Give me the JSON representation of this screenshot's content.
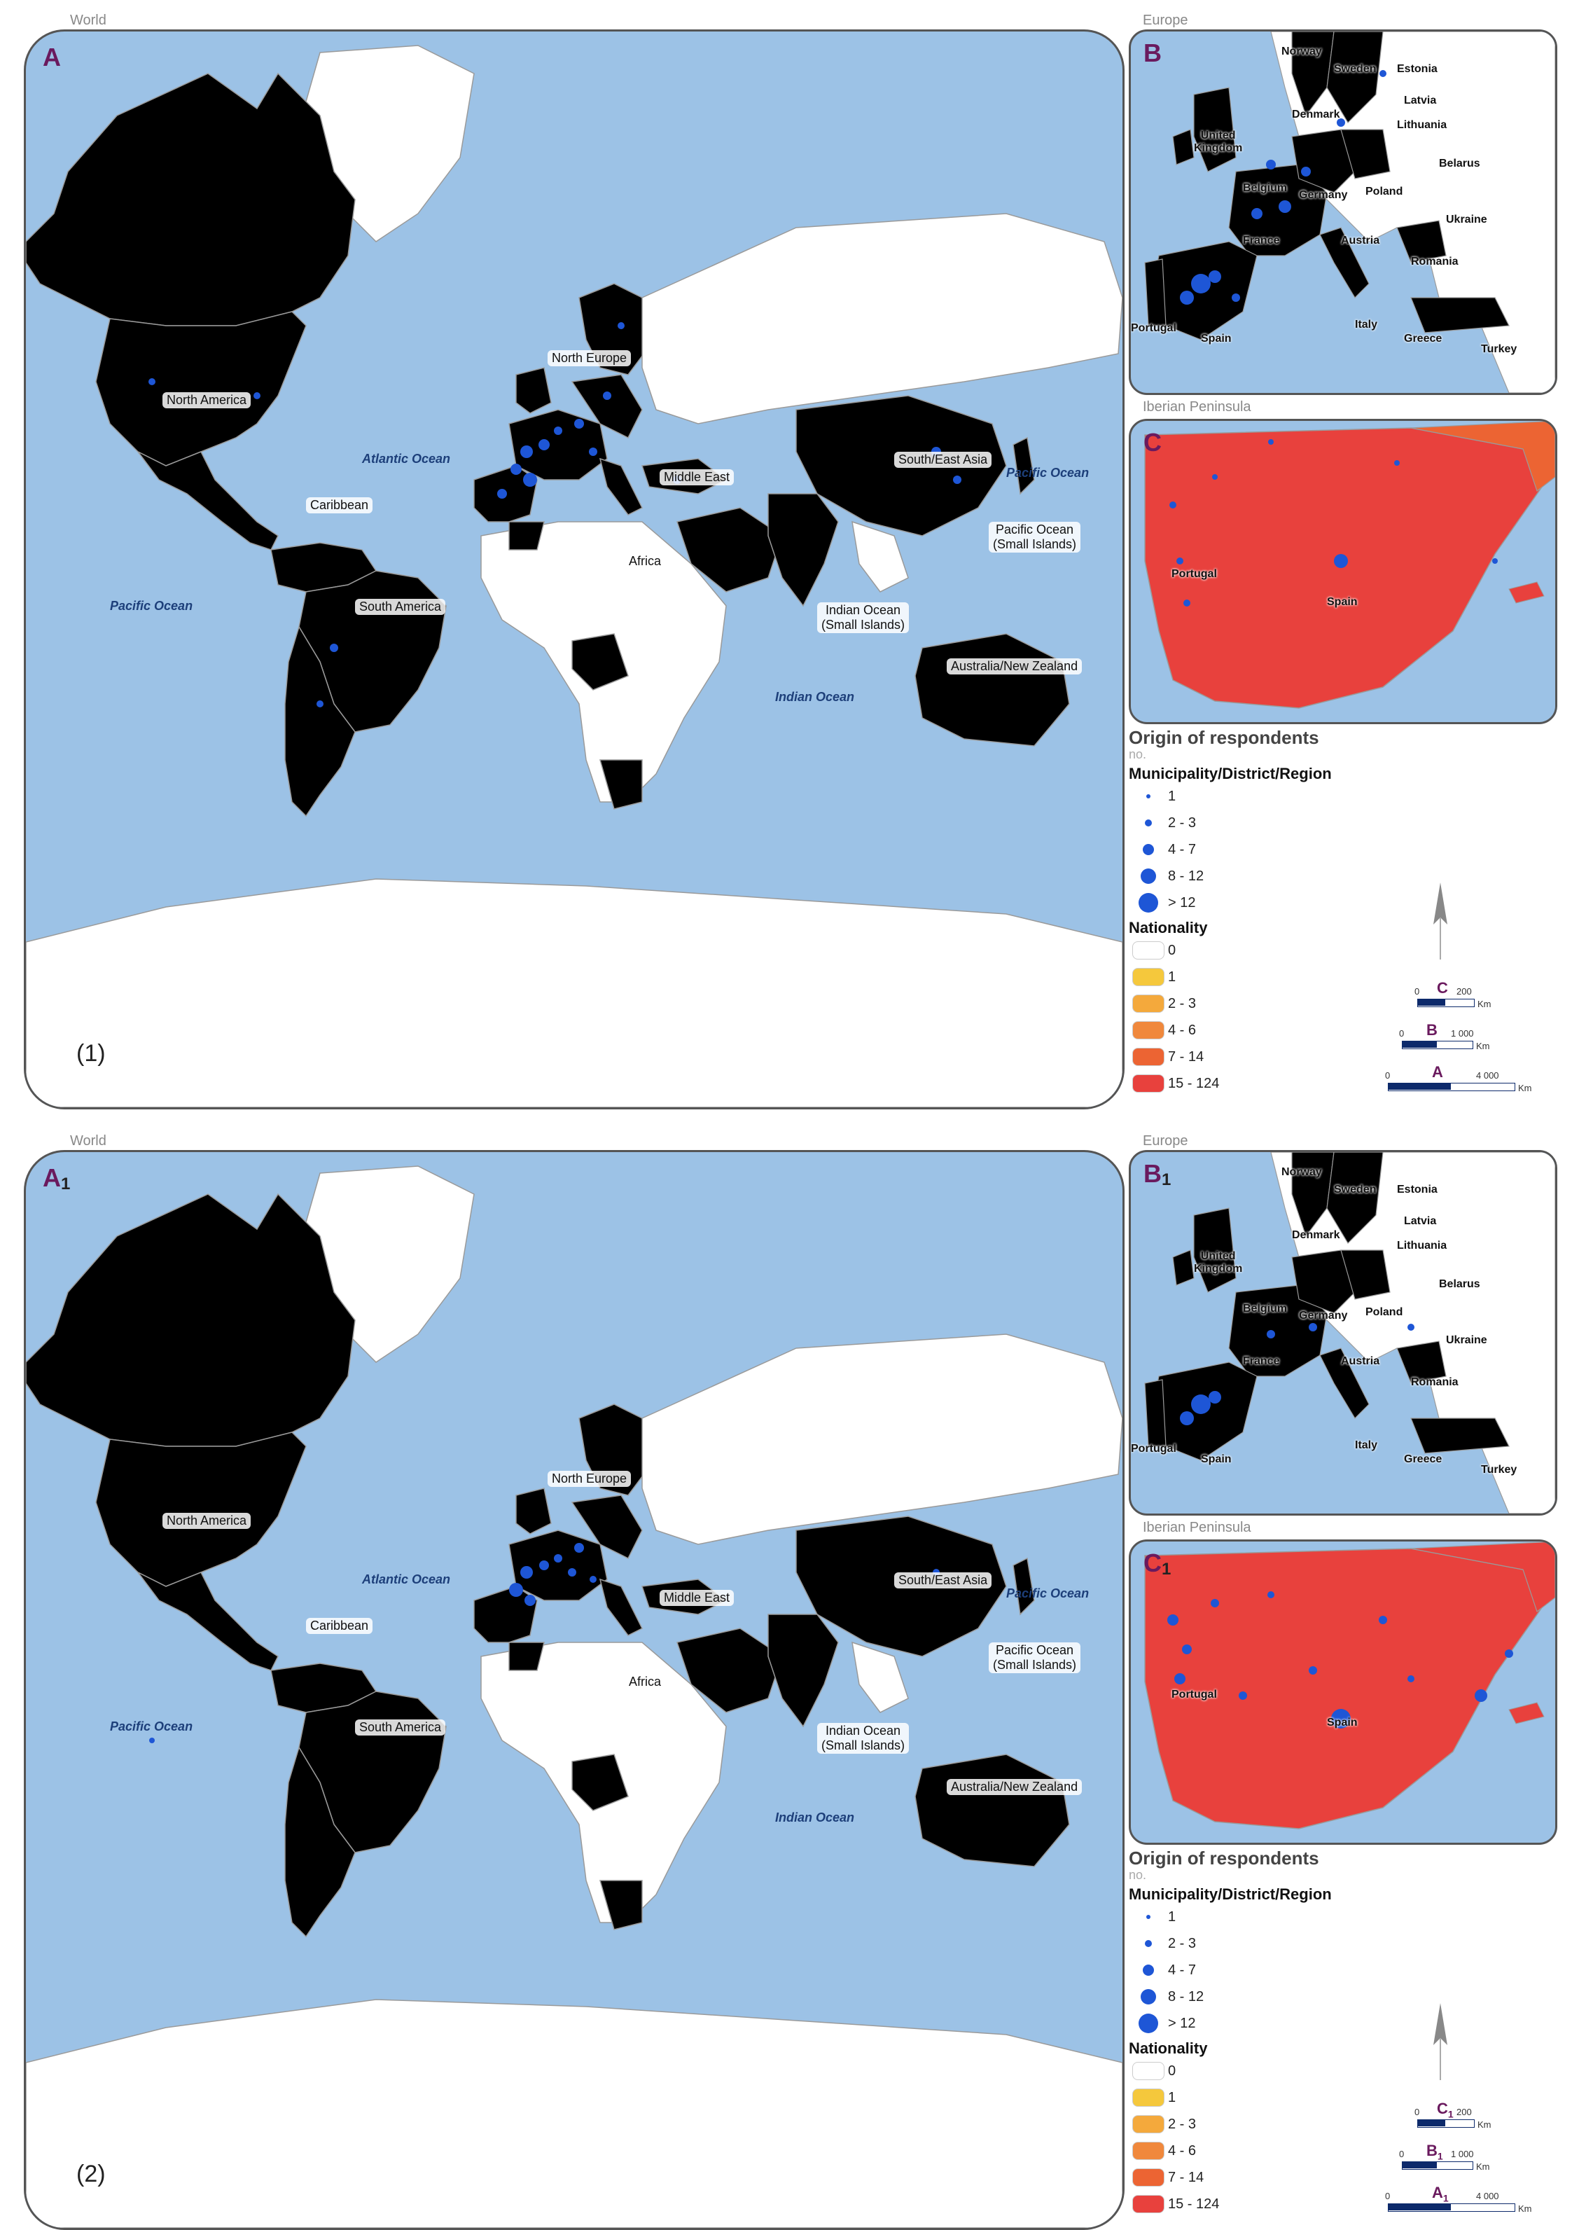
{
  "colors": {
    "ocean": "#9cc2e6",
    "land_none": "#ffffff",
    "c1": "#f5c83c",
    "c23": "#f4a93c",
    "c46": "#f0883c",
    "c714": "#ec6433",
    "c15": "#e8413d",
    "dot": "#1e56d6",
    "accent": "#6a1a5e"
  },
  "panels": [
    {
      "panel_number": "(1)",
      "captions": {
        "world": "World",
        "europe": "Europe",
        "iberia": "Iberian Peninsula"
      },
      "letters": {
        "a": "A",
        "a_sub": "",
        "b": "B",
        "b_sub": "",
        "c": "C",
        "c_sub": ""
      },
      "region_labels": {
        "north_america": "North America",
        "caribbean": "Caribbean",
        "south_america": "South America",
        "north_europe": "North Europe",
        "middle_east": "Middle East",
        "africa": "Africa",
        "se_asia": "South/East Asia",
        "indian_islands": "Indian Ocean\n(Small Islands)",
        "pacific_islands": "Pacific Ocean\n(Small Islands)",
        "australia": "Australia/New Zealand"
      },
      "oceans": {
        "atlantic": "Atlantic Ocean",
        "pacific_w": "Pacific Ocean",
        "pacific_e": "Pacific Ocean",
        "indian": "Indian Ocean"
      },
      "europe_labels": {
        "norway": "Norway",
        "sweden": "Sweden",
        "estonia": "Estonia",
        "latvia": "Latvia",
        "lithuania": "Lithuania",
        "denmark": "Denmark",
        "uk": "United\nKingdom",
        "belarus": "Belarus",
        "belgium": "Belgium",
        "germany": "Germany",
        "poland": "Poland",
        "ukraine": "Ukraine",
        "france": "France",
        "austria": "Austria",
        "romania": "Romania",
        "portugal": "Portugal",
        "spain": "Spain",
        "italy": "Italy",
        "greece": "Greece",
        "turkey": "Turkey"
      },
      "iberia_labels": {
        "portugal": "Portugal",
        "spain": "Spain"
      },
      "fills": {
        "canada": "c46",
        "usa": "c23",
        "mexico": "none",
        "brazil": "c714",
        "argentina": "c1",
        "colombia": "c1",
        "venezuela": "c1",
        "angola": "c714",
        "china": "c714",
        "india": "c46",
        "australia": "c1",
        "spain": "c15",
        "portugal": "c714",
        "france": "c15",
        "germany": "c714",
        "uk": "c714",
        "norway": "none",
        "sweden": "c23",
        "poland": "c23",
        "italy": "c46",
        "turkey": "c1",
        "romania": "c1",
        "ireland": "c714",
        "morocco": "c46",
        "arabia": "c1",
        "japan": "c1",
        "africa_s": "none"
      },
      "legend": {
        "title": "Origin of respondents",
        "unit": "no.",
        "points_title": "Municipality/District/Region",
        "points": [
          "1",
          "2 - 3",
          "4 - 7",
          "8 - 12",
          "> 12"
        ],
        "nationality_title": "Nationality",
        "classes": [
          "0",
          "1",
          "2 - 3",
          "4 - 6",
          "7 - 14",
          "15 - 124"
        ]
      },
      "scales": [
        {
          "letter": "C",
          "sub": "",
          "zero": "0",
          "max": "200",
          "unit": "Km"
        },
        {
          "letter": "B",
          "sub": "",
          "zero": "0",
          "max": "1 000",
          "unit": "Km"
        },
        {
          "letter": "A",
          "sub": "",
          "zero": "0",
          "max": "4 000",
          "unit": "Km"
        }
      ],
      "north": "N"
    },
    {
      "panel_number": "(2)",
      "captions": {
        "world": "World",
        "europe": "Europe",
        "iberia": "Iberian Peninsula"
      },
      "letters": {
        "a": "A",
        "a_sub": "1",
        "b": "B",
        "b_sub": "1",
        "c": "C",
        "c_sub": "1"
      },
      "region_labels": {
        "north_america": "North America",
        "caribbean": "Caribbean",
        "south_america": "South America",
        "north_europe": "North Europe",
        "middle_east": "Middle East",
        "africa": "Africa",
        "se_asia": "South/East Asia",
        "indian_islands": "Indian Ocean\n(Small Islands)",
        "pacific_islands": "Pacific Ocean\n(Small Islands)",
        "australia": "Australia/New Zealand"
      },
      "oceans": {
        "atlantic": "Atlantic Ocean",
        "pacific_w": "Pacific Ocean",
        "pacific_e": "Pacific Ocean",
        "indian": "Indian Ocean"
      },
      "europe_labels": {
        "norway": "Norway",
        "sweden": "Sweden",
        "estonia": "Estonia",
        "latvia": "Latvia",
        "lithuania": "Lithuania",
        "denmark": "Denmark",
        "uk": "United\nKingdom",
        "belarus": "Belarus",
        "belgium": "Belgium",
        "germany": "Germany",
        "poland": "Poland",
        "ukraine": "Ukraine",
        "france": "France",
        "austria": "Austria",
        "romania": "Romania",
        "portugal": "Portugal",
        "spain": "Spain",
        "italy": "Italy",
        "greece": "Greece",
        "turkey": "Turkey"
      },
      "iberia_labels": {
        "portugal": "Portugal",
        "spain": "Spain"
      },
      "fills": {
        "canada": "none",
        "usa": "none",
        "mexico": "c1",
        "brazil": "none",
        "argentina": "none",
        "colombia": "none",
        "venezuela": "none",
        "angola": "c1",
        "china": "c23",
        "india": "c23",
        "australia": "none",
        "spain": "c15",
        "portugal": "c15",
        "france": "c714",
        "germany": "c46",
        "uk": "none",
        "norway": "c1",
        "sweden": "none",
        "poland": "none",
        "italy": "c714",
        "turkey": "none",
        "romania": "c1",
        "ireland": "c1",
        "morocco": "c1",
        "arabia": "none",
        "japan": "c1",
        "africa_s": "c1"
      },
      "legend": {
        "title": "Origin of respondents",
        "unit": "no.",
        "points_title": "Municipality/District/Region",
        "points": [
          "1",
          "2 - 3",
          "4 - 7",
          "8 - 12",
          "> 12"
        ],
        "nationality_title": "Nationality",
        "classes": [
          "0",
          "1",
          "2 - 3",
          "4 - 6",
          "7 - 14",
          "15 - 124"
        ]
      },
      "scales": [
        {
          "letter": "C",
          "sub": "1",
          "zero": "0",
          "max": "200",
          "unit": "Km"
        },
        {
          "letter": "B",
          "sub": "1",
          "zero": "0",
          "max": "1 000",
          "unit": "Km"
        },
        {
          "letter": "A",
          "sub": "1",
          "zero": "0",
          "max": "4 000",
          "unit": "Km"
        }
      ],
      "north": "N"
    }
  ]
}
